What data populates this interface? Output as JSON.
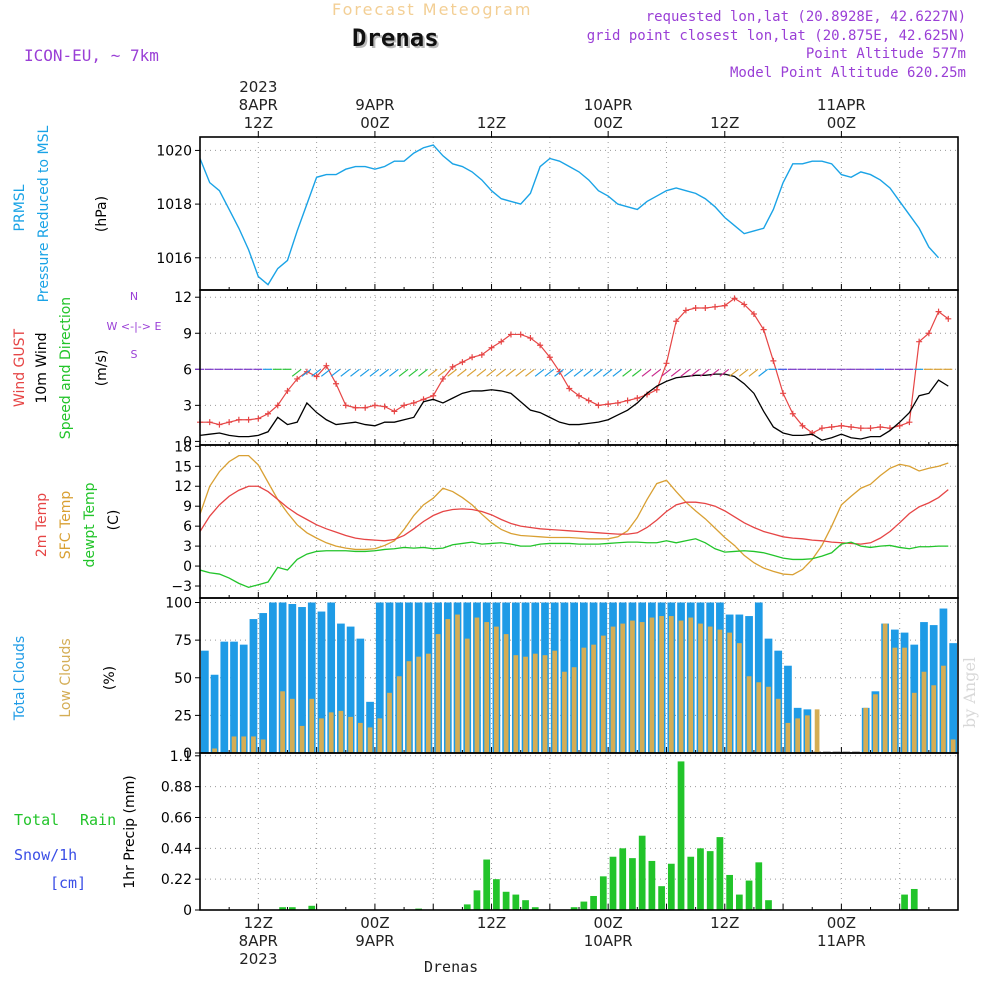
{
  "header": {
    "title": "Drenas",
    "faded_title": "Forecast Meteogram",
    "model": "ICON-EU, ~ 7km",
    "requested": "requested lon,lat (20.8928E, 42.6227N)",
    "grid_point": "grid point closest lon,lat (20.875E, 42.625N)",
    "point_altitude": "Point Altitude 577m",
    "model_altitude": "Model Point Altitude 620.25m",
    "footer_name": "Drenas",
    "watermark": "by Angel"
  },
  "colors": {
    "pressure": "#1aa3e6",
    "gust": "#e64545",
    "wind": "#000000",
    "temp": "#e64545",
    "sfc": "#d9a033",
    "dewpt": "#22c42a",
    "total_cloud": "#1e9be6",
    "low_cloud": "#d4ad55",
    "rain": "#22c42a",
    "snow": "#3a4ee6",
    "label_purple": "#9a3fd6"
  },
  "chart_data": {
    "type": "meteogram",
    "time_axis": {
      "start": "2023-04-08 06Z",
      "hours": 78,
      "top_ticks": [
        {
          "hour": 6,
          "label": "12Z",
          "date": "8APR",
          "year": "2023"
        },
        {
          "hour": 18,
          "label": "00Z",
          "date": "9APR"
        },
        {
          "hour": 30,
          "label": "12Z"
        },
        {
          "hour": 42,
          "label": "00Z",
          "date": "10APR"
        },
        {
          "hour": 54,
          "label": "12Z"
        },
        {
          "hour": 66,
          "label": "00Z",
          "date": "11APR"
        }
      ],
      "bottom_ticks": [
        {
          "hour": 6,
          "label": "12Z",
          "date": "8APR",
          "year": "2023"
        },
        {
          "hour": 18,
          "label": "00Z",
          "date": "9APR"
        },
        {
          "hour": 30,
          "label": "12Z"
        },
        {
          "hour": 42,
          "label": "00Z",
          "date": "10APR"
        },
        {
          "hour": 54,
          "label": "12Z"
        },
        {
          "hour": 66,
          "label": "00Z",
          "date": "11APR"
        }
      ]
    },
    "panels": {
      "pressure": {
        "labels": [
          "PRMSL",
          "Pressure Reduced to MSL"
        ],
        "unit": "(hPa)",
        "ylim": [
          1014.8,
          1020.5
        ],
        "ticks": [
          {
            "v": 1016,
            "t": "1016"
          },
          {
            "v": 1018,
            "t": "1018"
          },
          {
            "v": 1020,
            "t": "1020"
          }
        ],
        "values": [
          1019.7,
          1018.8,
          1018.5,
          1017.8,
          1017.1,
          1016.3,
          1015.3,
          1015.0,
          1015.6,
          1015.9,
          1017.0,
          1018.0,
          1019.0,
          1019.1,
          1019.1,
          1019.3,
          1019.4,
          1019.4,
          1019.3,
          1019.4,
          1019.6,
          1019.6,
          1019.9,
          1020.1,
          1020.2,
          1019.8,
          1019.5,
          1019.4,
          1019.2,
          1018.9,
          1018.5,
          1018.2,
          1018.1,
          1018.0,
          1018.4,
          1019.4,
          1019.7,
          1019.6,
          1019.4,
          1019.2,
          1018.9,
          1018.5,
          1018.3,
          1018.0,
          1017.9,
          1017.8,
          1018.1,
          1018.3,
          1018.5,
          1018.6,
          1018.5,
          1018.4,
          1018.2,
          1017.9,
          1017.5,
          1017.2,
          1016.9,
          1017.0,
          1017.1,
          1017.8,
          1018.8,
          1019.5,
          1019.5,
          1019.6,
          1019.6,
          1019.5,
          1019.1,
          1019.0,
          1019.2,
          1019.1,
          1018.9,
          1018.6,
          1018.1,
          1017.6,
          1017.1,
          1016.4,
          1016.0
        ]
      },
      "wind": {
        "labels": [
          "Wind GUST",
          "10m Wind",
          "Speed and Direction"
        ],
        "unit": "(m/s)",
        "compass": [
          "N",
          "W <-|-> E",
          "S"
        ],
        "ylim": [
          -0.3,
          12.6
        ],
        "ticks": [
          {
            "v": 0,
            "t": "0"
          },
          {
            "v": 3,
            "t": "3"
          },
          {
            "v": 6,
            "t": "6"
          },
          {
            "v": 9,
            "t": "9"
          },
          {
            "v": 12,
            "t": "12"
          }
        ],
        "gust": [
          1.6,
          1.6,
          1.4,
          1.6,
          1.8,
          1.8,
          1.9,
          2.3,
          3.0,
          4.2,
          5.2,
          5.8,
          5.4,
          6.3,
          4.8,
          3.0,
          2.8,
          2.8,
          3.0,
          2.9,
          2.5,
          3.0,
          3.2,
          3.5,
          3.8,
          5.2,
          6.2,
          6.6,
          7.0,
          7.2,
          7.8,
          8.3,
          8.9,
          8.9,
          8.6,
          8.0,
          7.0,
          5.8,
          4.4,
          3.8,
          3.4,
          3.0,
          3.1,
          3.2,
          3.4,
          3.6,
          3.9,
          4.3,
          6.5,
          10.0,
          10.9,
          11.1,
          11.1,
          11.2,
          11.3,
          11.9,
          11.4,
          10.6,
          9.3,
          6.7,
          4.0,
          2.3,
          1.3,
          0.7,
          1.1,
          1.2,
          1.3,
          1.2,
          1.1,
          1.1,
          1.2,
          1.1,
          1.3,
          1.6,
          8.3,
          9.0,
          10.8,
          10.2
        ],
        "wind": [
          0.5,
          0.6,
          0.7,
          0.5,
          0.4,
          0.4,
          0.5,
          0.8,
          2.0,
          1.4,
          1.6,
          3.2,
          2.4,
          1.8,
          1.4,
          1.5,
          1.6,
          1.4,
          1.3,
          1.6,
          1.6,
          1.8,
          2.0,
          3.3,
          3.5,
          3.2,
          3.6,
          4.0,
          4.2,
          4.2,
          4.3,
          4.2,
          4.0,
          3.3,
          2.6,
          2.4,
          2.0,
          1.6,
          1.4,
          1.4,
          1.5,
          1.6,
          1.8,
          2.2,
          2.6,
          3.2,
          4.0,
          4.6,
          5.0,
          5.3,
          5.4,
          5.5,
          5.5,
          5.6,
          5.6,
          5.4,
          4.8,
          4.0,
          2.5,
          1.2,
          0.7,
          0.5,
          0.5,
          0.6,
          0.1,
          0.3,
          0.6,
          0.3,
          0.2,
          0.4,
          0.4,
          0.9,
          1.6,
          2.4,
          3.8,
          4.0,
          5.1,
          4.6
        ]
      },
      "temp": {
        "labels": [
          "2m Temp",
          "SFC Temp",
          "dewpt Temp"
        ],
        "unit": "(C)",
        "ylim": [
          -4.8,
          18.2
        ],
        "ticks": [
          {
            "v": -3,
            "t": "−3"
          },
          {
            "v": 0,
            "t": "0"
          },
          {
            "v": 3,
            "t": "3"
          },
          {
            "v": 6,
            "t": "6"
          },
          {
            "v": 9,
            "t": "9"
          },
          {
            "v": 12,
            "t": "12"
          },
          {
            "v": 15,
            "t": "15"
          },
          {
            "v": 18,
            "t": "18"
          }
        ],
        "t2m": [
          5.2,
          7.5,
          9.2,
          10.5,
          11.4,
          12.0,
          12.0,
          11.2,
          10.0,
          8.8,
          7.8,
          7.0,
          6.2,
          5.6,
          5.1,
          4.6,
          4.2,
          4.0,
          3.9,
          3.8,
          4.0,
          4.6,
          5.6,
          6.7,
          7.6,
          8.2,
          8.5,
          8.6,
          8.5,
          8.2,
          7.7,
          7.0,
          6.4,
          6.0,
          5.8,
          5.6,
          5.5,
          5.4,
          5.3,
          5.2,
          5.1,
          5.0,
          4.9,
          4.8,
          4.8,
          5.0,
          5.8,
          6.9,
          8.2,
          9.2,
          9.6,
          9.6,
          9.4,
          9.0,
          8.3,
          7.4,
          6.5,
          5.8,
          5.2,
          4.8,
          4.4,
          4.2,
          4.1,
          3.9,
          3.8,
          3.6,
          3.5,
          3.4,
          3.3,
          3.5,
          4.2,
          5.2,
          6.5,
          7.9,
          8.9,
          9.5,
          10.3,
          11.5
        ],
        "sfc": [
          7.8,
          12.0,
          14.2,
          15.7,
          16.6,
          16.6,
          15.2,
          12.6,
          10.0,
          8.0,
          6.2,
          5.0,
          4.2,
          3.5,
          3.0,
          2.7,
          2.5,
          2.5,
          2.6,
          3.1,
          3.8,
          5.5,
          7.6,
          9.2,
          10.2,
          11.7,
          11.2,
          10.3,
          9.2,
          7.8,
          6.5,
          5.5,
          4.9,
          4.6,
          4.5,
          4.4,
          4.3,
          4.3,
          4.3,
          4.2,
          4.1,
          4.1,
          4.1,
          4.4,
          5.3,
          7.3,
          10.0,
          12.4,
          12.9,
          11.2,
          9.6,
          8.3,
          7.1,
          5.7,
          4.3,
          3.1,
          1.6,
          0.5,
          -0.3,
          -0.8,
          -1.2,
          -1.3,
          -0.5,
          1.0,
          3.1,
          6.0,
          9.2,
          10.5,
          11.7,
          12.3,
          13.6,
          14.7,
          15.3,
          15.0,
          14.3,
          14.7,
          15.0,
          15.5
        ],
        "dew": [
          -0.6,
          -1.0,
          -1.2,
          -1.8,
          -2.6,
          -3.2,
          -2.8,
          -2.4,
          -0.2,
          -0.6,
          1.0,
          1.8,
          2.2,
          2.3,
          2.3,
          2.3,
          2.2,
          2.2,
          2.3,
          2.5,
          2.6,
          2.8,
          2.7,
          2.8,
          2.6,
          2.7,
          3.2,
          3.4,
          3.6,
          3.3,
          3.4,
          3.5,
          3.3,
          3.0,
          3.0,
          3.3,
          3.4,
          3.4,
          3.4,
          3.3,
          3.3,
          3.3,
          3.4,
          3.5,
          3.6,
          3.6,
          3.5,
          3.5,
          3.8,
          3.5,
          3.8,
          4.1,
          3.5,
          2.6,
          2.1,
          2.2,
          2.3,
          2.2,
          2.0,
          1.6,
          1.2,
          1.0,
          1.0,
          1.1,
          1.5,
          2.0,
          3.3,
          3.6,
          3.0,
          2.8,
          3.0,
          3.1,
          2.8,
          2.6,
          2.9,
          2.9,
          3.0,
          3.0
        ]
      },
      "clouds": {
        "labels": [
          "Total Clouds",
          "Low Clouds"
        ],
        "unit": "(%)",
        "ylim": [
          0,
          103
        ],
        "ticks": [
          {
            "v": 0,
            "t": "0"
          },
          {
            "v": 25,
            "t": "25"
          },
          {
            "v": 50,
            "t": "50"
          },
          {
            "v": 75,
            "t": "75"
          },
          {
            "v": 100,
            "t": "100"
          }
        ],
        "total": [
          68,
          52,
          74,
          74,
          72,
          89,
          93,
          100,
          100,
          99,
          97,
          100,
          94,
          100,
          86,
          84,
          76,
          34,
          100,
          100,
          100,
          100,
          100,
          100,
          100,
          100,
          100,
          100,
          100,
          100,
          100,
          100,
          100,
          100,
          100,
          100,
          100,
          100,
          100,
          100,
          100,
          100,
          100,
          100,
          100,
          100,
          100,
          100,
          100,
          100,
          100,
          100,
          100,
          100,
          92,
          92,
          91,
          100,
          76,
          68,
          58,
          30,
          29,
          0,
          0,
          0,
          0,
          0,
          30,
          41,
          86,
          82,
          80,
          72,
          87,
          85,
          96,
          73
        ],
        "low": [
          0,
          3,
          0,
          11,
          11,
          11,
          9,
          0,
          41,
          36,
          18,
          36,
          23,
          27,
          28,
          24,
          20,
          17,
          23,
          40,
          51,
          61,
          64,
          66,
          79,
          89,
          92,
          76,
          90,
          87,
          84,
          79,
          65,
          64,
          66,
          65,
          68,
          54,
          57,
          70,
          72,
          78,
          84,
          86,
          88,
          87,
          90,
          91,
          91,
          88,
          90,
          86,
          84,
          82,
          80,
          73,
          51,
          47,
          44,
          36,
          20,
          23,
          25,
          29,
          0,
          0,
          0,
          0,
          30,
          39,
          86,
          70,
          70,
          40,
          54,
          45,
          58,
          9
        ]
      },
      "precip": {
        "labels": [
          "Total",
          "Rain",
          "Snow/1h",
          "[cm]"
        ],
        "unit": "1hr Precip (mm)",
        "ylim": [
          0,
          1.12
        ],
        "ticks": [
          {
            "v": 0,
            "t": "0"
          },
          {
            "v": 0.22,
            "t": "0.22"
          },
          {
            "v": 0.44,
            "t": "0.44"
          },
          {
            "v": 0.66,
            "t": "0.66"
          },
          {
            "v": 0.88,
            "t": "0.88"
          },
          {
            "v": 1.1,
            "t": "1.1"
          }
        ],
        "rain": [
          0,
          0,
          0,
          0,
          0,
          0,
          0,
          0,
          0.02,
          0.02,
          0,
          0.03,
          0,
          0,
          0,
          0,
          0,
          0,
          0,
          0,
          0,
          0,
          0.01,
          0,
          0,
          0,
          0,
          0.04,
          0.14,
          0.36,
          0.22,
          0.13,
          0.11,
          0.07,
          0.02,
          0,
          0,
          0,
          0.02,
          0.06,
          0.1,
          0.24,
          0.38,
          0.44,
          0.37,
          0.53,
          0.35,
          0.17,
          0.33,
          1.06,
          0.38,
          0.44,
          0.42,
          0.52,
          0.25,
          0.11,
          0.21,
          0.34,
          0.07,
          0,
          0,
          0,
          0,
          0,
          0,
          0,
          0,
          0,
          0,
          0,
          0,
          0,
          0.11,
          0.15,
          0,
          0,
          0,
          0
        ],
        "snow": []
      }
    }
  }
}
